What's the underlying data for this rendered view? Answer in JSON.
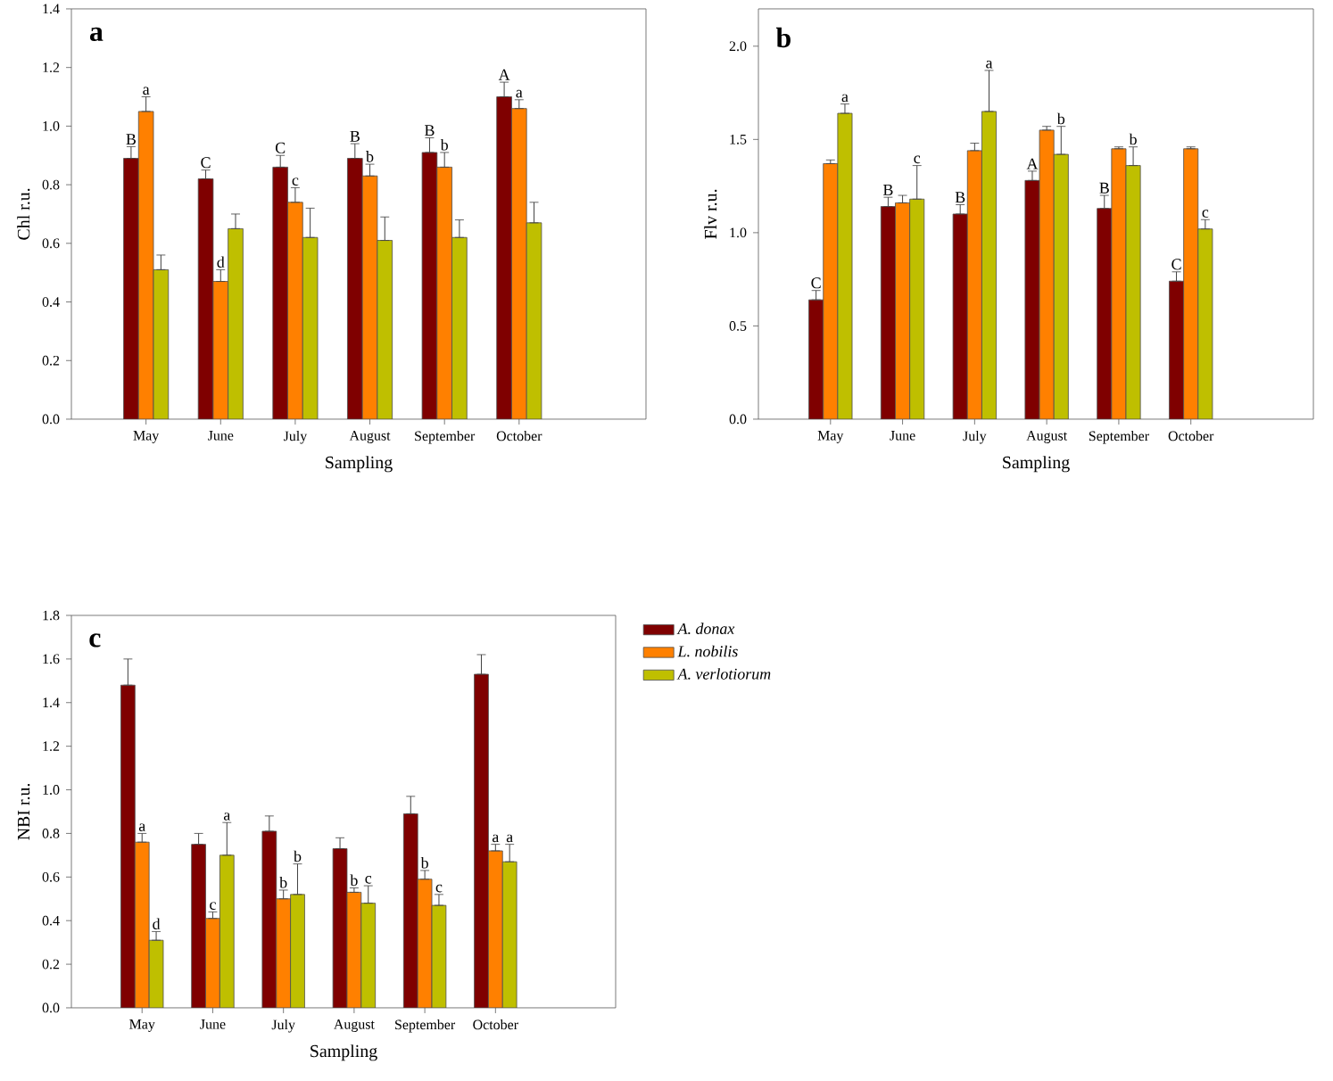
{
  "chart_data": [
    {
      "type": "bar",
      "title": "a",
      "xlabel": "Sampling",
      "ylabel": "Chl r.u.",
      "categories": [
        "May",
        "June",
        "July",
        "August",
        "September",
        "October"
      ],
      "ylim": [
        0,
        1.4
      ],
      "yticks": [
        {
          "value": 0,
          "label": "0.0"
        },
        0.2,
        0.4,
        0.6,
        0.8,
        {
          "value": 1,
          "label": "1.0"
        },
        1.2,
        1.4
      ],
      "legend": false,
      "series": [
        {
          "color": "#7f0000",
          "values": [
            0.89,
            0.82,
            0.86,
            0.89,
            0.91,
            1.1
          ],
          "errors": [
            [
              0.89,
              0.93
            ],
            [
              0.82,
              0.85
            ],
            [
              0.86,
              0.9
            ],
            [
              0.89,
              0.94
            ],
            [
              0.91,
              0.96
            ],
            [
              1.1,
              1.15
            ]
          ],
          "value_labels": [
            "B",
            "C",
            "C",
            "B",
            "B",
            "A"
          ]
        },
        {
          "color": "#ff8000",
          "values": [
            1.05,
            0.47,
            0.74,
            0.83,
            0.86,
            1.06
          ],
          "errors": [
            [
              1.05,
              1.1
            ],
            [
              0.47,
              0.51
            ],
            [
              0.74,
              0.79
            ],
            [
              0.83,
              0.87
            ],
            [
              0.86,
              0.91
            ],
            [
              1.06,
              1.09
            ]
          ],
          "value_labels": [
            "a",
            "d",
            "c",
            "b",
            "b",
            "a"
          ]
        },
        {
          "color": "#bfbf00",
          "values": [
            0.51,
            0.65,
            0.62,
            0.61,
            0.62,
            0.67
          ],
          "errors": [
            [
              0.51,
              0.56
            ],
            [
              0.65,
              0.7
            ],
            [
              0.62,
              0.72
            ],
            [
              0.61,
              0.69
            ],
            [
              0.62,
              0.68
            ],
            [
              0.67,
              0.74
            ]
          ]
        }
      ]
    },
    {
      "type": "bar",
      "title": "b",
      "xlabel": "Sampling",
      "ylabel": "Flv r.u.",
      "categories": [
        "May",
        "June",
        "July",
        "August",
        "September",
        "October"
      ],
      "ylim": [
        0,
        2.2
      ],
      "yticks": [
        {
          "value": 0,
          "label": "0.0"
        },
        0.5,
        {
          "value": 1,
          "label": "1.0"
        },
        1.5,
        {
          "value": 2,
          "label": "2.0"
        }
      ],
      "legend": false,
      "series": [
        {
          "color": "#7f0000",
          "values": [
            0.64,
            1.14,
            1.1,
            1.28,
            1.13,
            0.74
          ],
          "errors": [
            [
              0.64,
              0.69
            ],
            [
              1.14,
              1.19
            ],
            [
              1.1,
              1.15
            ],
            [
              1.28,
              1.33
            ],
            [
              1.13,
              1.2
            ],
            [
              0.74,
              0.79
            ]
          ],
          "value_labels": [
            "C",
            "B",
            "B",
            "A",
            "B",
            "C"
          ]
        },
        {
          "color": "#ff8000",
          "values": [
            1.37,
            1.16,
            1.44,
            1.55,
            1.45,
            1.45
          ],
          "errors": [
            [
              1.37,
              1.39
            ],
            [
              1.16,
              1.2
            ],
            [
              1.44,
              1.48
            ],
            [
              1.55,
              1.57
            ],
            [
              1.45,
              1.46
            ],
            [
              1.45,
              1.46
            ]
          ]
        },
        {
          "color": "#bfbf00",
          "values": [
            1.64,
            1.18,
            1.65,
            1.42,
            1.36,
            1.02
          ],
          "errors": [
            [
              1.64,
              1.69
            ],
            [
              1.18,
              1.36
            ],
            [
              1.65,
              1.87
            ],
            [
              1.42,
              1.57
            ],
            [
              1.36,
              1.46
            ],
            [
              1.02,
              1.07
            ]
          ],
          "value_labels": [
            "a",
            "c",
            "a",
            "b",
            "b",
            "c"
          ]
        }
      ]
    },
    {
      "type": "bar",
      "title": "c",
      "xlabel": "Sampling",
      "ylabel": "NBI r.u.",
      "categories": [
        "May",
        "June",
        "July",
        "August",
        "September",
        "October"
      ],
      "ylim": [
        0,
        1.8
      ],
      "yticks": [
        {
          "value": 0,
          "label": "0.0"
        },
        0.2,
        0.4,
        0.6,
        0.8,
        {
          "value": 1,
          "label": "1.0"
        },
        1.2,
        1.4,
        1.6,
        1.8
      ],
      "legend": "right",
      "series": [
        {
          "name": "A. donax",
          "color": "#7f0000",
          "values": [
            1.48,
            0.75,
            0.81,
            0.73,
            0.89,
            1.53
          ],
          "errors": [
            [
              1.48,
              1.6
            ],
            [
              0.75,
              0.8
            ],
            [
              0.81,
              0.88
            ],
            [
              0.73,
              0.78
            ],
            [
              0.89,
              0.97
            ],
            [
              1.53,
              1.62
            ]
          ]
        },
        {
          "name": "L. nobilis",
          "color": "#ff8000",
          "values": [
            0.76,
            0.41,
            0.5,
            0.53,
            0.59,
            0.72
          ],
          "errors": [
            [
              0.76,
              0.8
            ],
            [
              0.41,
              0.44
            ],
            [
              0.5,
              0.54
            ],
            [
              0.53,
              0.55
            ],
            [
              0.59,
              0.63
            ],
            [
              0.72,
              0.75
            ]
          ],
          "value_labels": [
            "a",
            "c",
            "b",
            "b",
            "b",
            "a"
          ]
        },
        {
          "name": "A. verlotiorum",
          "color": "#bfbf00",
          "values": [
            0.31,
            0.7,
            0.52,
            0.48,
            0.47,
            0.67
          ],
          "errors": [
            [
              0.31,
              0.35
            ],
            [
              0.7,
              0.85
            ],
            [
              0.52,
              0.66
            ],
            [
              0.48,
              0.56
            ],
            [
              0.47,
              0.52
            ],
            [
              0.67,
              0.75
            ]
          ],
          "value_labels": [
            "d",
            "a",
            "b",
            "c",
            "c",
            "a"
          ]
        }
      ]
    }
  ]
}
